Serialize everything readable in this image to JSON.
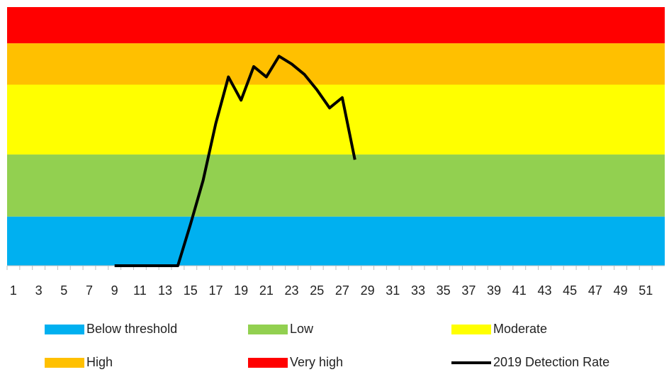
{
  "chart_data": {
    "type": "line",
    "categories": [
      1,
      null,
      3,
      null,
      5,
      null,
      7,
      null,
      9,
      null,
      11,
      null,
      13,
      null,
      15,
      null,
      17,
      null,
      19,
      null,
      21,
      null,
      23,
      null,
      25,
      null,
      27,
      null,
      29,
      null,
      31,
      null,
      33,
      null,
      35,
      null,
      37,
      null,
      39,
      null,
      41,
      null,
      43,
      null,
      45,
      null,
      47,
      null,
      49,
      null,
      51,
      null
    ],
    "bands": [
      {
        "name": "Below threshold",
        "color": "#00b0f0",
        "value": 19
      },
      {
        "name": "Low",
        "color": "#92d050",
        "value": 24
      },
      {
        "name": "Moderate",
        "color": "#ffff00",
        "value": 27
      },
      {
        "name": "High",
        "color": "#ffc000",
        "value": 16
      },
      {
        "name": "Very high",
        "color": "#ff0000",
        "value": 14
      }
    ],
    "series": [
      {
        "name": "2019 Detection Rate",
        "color": "#000000",
        "x": [
          9,
          10,
          11,
          12,
          13,
          14,
          15,
          16,
          17,
          18,
          19,
          20,
          21,
          22,
          23,
          24,
          25,
          26,
          27,
          28
        ],
        "values": [
          0,
          0,
          0,
          0,
          0,
          0,
          16,
          33,
          55,
          73,
          64,
          77,
          73,
          81,
          78,
          74,
          68,
          61,
          65,
          41
        ]
      }
    ],
    "ylim": [
      0,
      100
    ],
    "legend": "bottom"
  }
}
